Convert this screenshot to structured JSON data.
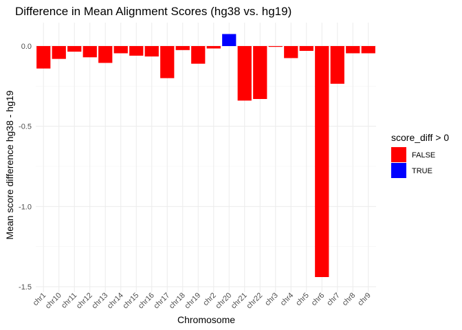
{
  "chart_data": {
    "type": "bar",
    "title": "Difference in Mean Alignment Scores (hg38 vs. hg19)",
    "xlabel": "Chromosome",
    "ylabel": "Mean score difference hg38 - hg19",
    "categories": [
      "chr1",
      "chr10",
      "chr11",
      "chr12",
      "chr13",
      "chr14",
      "chr15",
      "chr16",
      "chr17",
      "chr18",
      "chr19",
      "chr2",
      "chr20",
      "chr21",
      "chr22",
      "chr3",
      "chr4",
      "chr5",
      "chr6",
      "chr7",
      "chr8",
      "chr9"
    ],
    "values": [
      -0.14,
      -0.08,
      -0.035,
      -0.07,
      -0.105,
      -0.045,
      -0.06,
      -0.065,
      -0.2,
      -0.025,
      -0.11,
      -0.015,
      0.075,
      -0.34,
      -0.33,
      -0.005,
      -0.075,
      -0.03,
      -1.44,
      -0.235,
      -0.045,
      -0.045
    ],
    "ylim": [
      -1.5,
      0.15
    ],
    "yticks": [
      0.0,
      -0.5,
      -1.0,
      -1.5
    ],
    "ytick_labels": [
      "0.0",
      "-0.5",
      "-1.0",
      "-1.5"
    ],
    "grid": true,
    "legend": {
      "title": "score_diff > 0",
      "placement": "right",
      "entries": [
        {
          "label": "FALSE",
          "color": "#ff0000"
        },
        {
          "label": "TRUE",
          "color": "#0000ff"
        }
      ]
    }
  }
}
